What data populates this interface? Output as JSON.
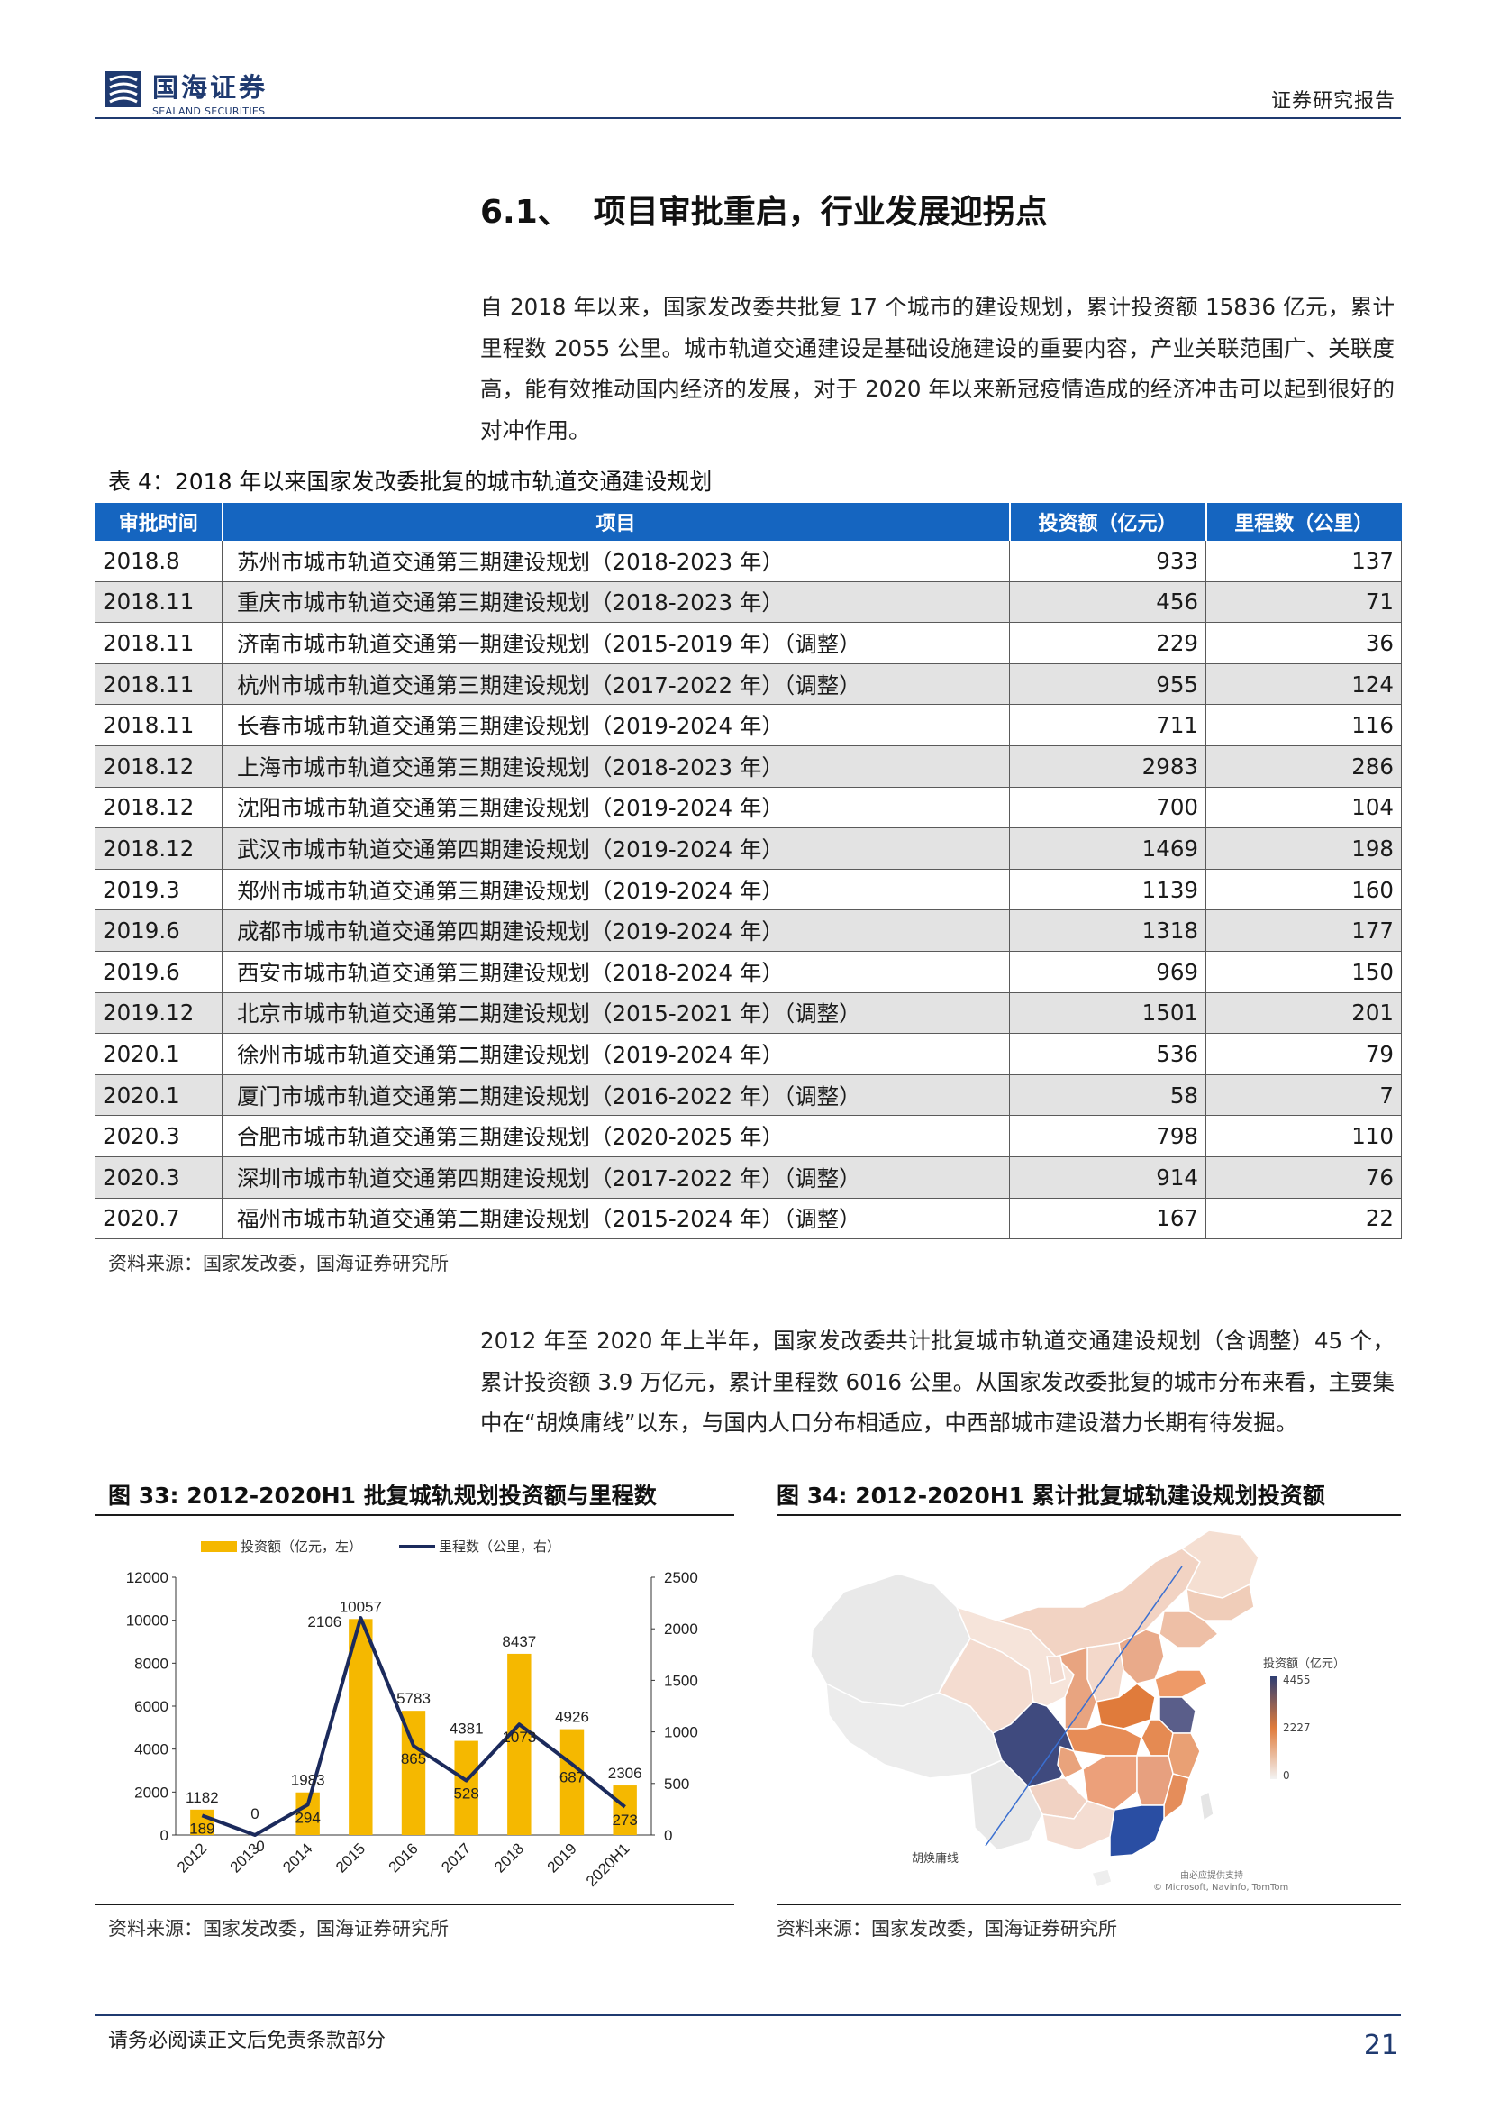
{
  "header": {
    "company_cn": "国海证券",
    "company_en": "SEALAND SECURITIES",
    "report_type": "证券研究报告"
  },
  "section": {
    "number": "6.1、",
    "title": "项目审批重启，行业发展迎拐点"
  },
  "paragraphs": {
    "p1": "自 2018 年以来，国家发改委共批复 17 个城市的建设规划，累计投资额 15836 亿元，累计里程数 2055 公里。城市轨道交通建设是基础设施建设的重要内容，产业关联范围广、关联度高，能有效推动国内经济的发展，对于 2020 年以来新冠疫情造成的经济冲击可以起到很好的对冲作用。",
    "p2": "2012 年至 2020 年上半年，国家发改委共计批复城市轨道交通建设规划（含调整）45 个，累计投资额 3.9 万亿元，累计里程数 6016 公里。从国家发改委批复的城市分布来看，主要集中在“胡焕庸线”以东，与国内人口分布相适应，中西部城市建设潜力长期有待发掘。"
  },
  "table": {
    "caption": "表 4：2018 年以来国家发改委批复的城市轨道交通建设规划",
    "headers": [
      "审批时间",
      "项目",
      "投资额（亿元）",
      "里程数（公里）"
    ],
    "rows": [
      {
        "date": "2018.8",
        "project": "苏州市城市轨道交通第三期建设规划（2018-2023 年）",
        "investment": "933",
        "mileage": "137"
      },
      {
        "date": "2018.11",
        "project": "重庆市城市轨道交通第三期建设规划（2018-2023 年）",
        "investment": "456",
        "mileage": "71"
      },
      {
        "date": "2018.11",
        "project": "济南市城市轨道交通第一期建设规划（2015-2019 年）（调整）",
        "investment": "229",
        "mileage": "36"
      },
      {
        "date": "2018.11",
        "project": "杭州市城市轨道交通第三期建设规划（2017-2022 年）（调整）",
        "investment": "955",
        "mileage": "124"
      },
      {
        "date": "2018.11",
        "project": "长春市城市轨道交通第三期建设规划（2019-2024 年）",
        "investment": "711",
        "mileage": "116"
      },
      {
        "date": "2018.12",
        "project": "上海市城市轨道交通第三期建设规划（2018-2023 年）",
        "investment": "2983",
        "mileage": "286"
      },
      {
        "date": "2018.12",
        "project": "沈阳市城市轨道交通第三期建设规划（2019-2024 年）",
        "investment": "700",
        "mileage": "104"
      },
      {
        "date": "2018.12",
        "project": "武汉市城市轨道交通第四期建设规划（2019-2024 年）",
        "investment": "1469",
        "mileage": "198"
      },
      {
        "date": "2019.3",
        "project": "郑州市城市轨道交通第三期建设规划（2019-2024 年）",
        "investment": "1139",
        "mileage": "160"
      },
      {
        "date": "2019.6",
        "project": "成都市城市轨道交通第四期建设规划（2019-2024 年）",
        "investment": "1318",
        "mileage": "177"
      },
      {
        "date": "2019.6",
        "project": "西安市城市轨道交通第三期建设规划（2018-2024 年）",
        "investment": "969",
        "mileage": "150"
      },
      {
        "date": "2019.12",
        "project": "北京市城市轨道交通第二期建设规划（2015-2021 年）（调整）",
        "investment": "1501",
        "mileage": "201"
      },
      {
        "date": "2020.1",
        "project": "徐州市城市轨道交通第二期建设规划（2019-2024 年）",
        "investment": "536",
        "mileage": "79"
      },
      {
        "date": "2020.1",
        "project": "厦门市城市轨道交通第二期建设规划（2016-2022 年）（调整）",
        "investment": "58",
        "mileage": "7"
      },
      {
        "date": "2020.3",
        "project": "合肥市城市轨道交通第三期建设规划（2020-2025 年）",
        "investment": "798",
        "mileage": "110"
      },
      {
        "date": "2020.3",
        "project": "深圳市城市轨道交通第四期建设规划（2017-2022 年）（调整）",
        "investment": "914",
        "mileage": "76"
      },
      {
        "date": "2020.7",
        "project": "福州市城市轨道交通第二期建设规划（2015-2024 年）（调整）",
        "investment": "167",
        "mileage": "22"
      }
    ],
    "source": "资料来源：国家发改委，国海证券研究所"
  },
  "figures": {
    "fig33_title": "图 33:   2012-2020H1 批复城轨规划投资额与里程数",
    "fig34_title": "图 34:   2012-2020H1 累计批复城轨建设规划投资额",
    "fig33_source": "资料来源：国家发改委，国海证券研究所",
    "fig34_source": "资料来源：国家发改委，国海证券研究所"
  },
  "chart_data": [
    {
      "type": "bar",
      "categories": [
        "2012",
        "2013",
        "2014",
        "2015",
        "2016",
        "2017",
        "2018",
        "2019",
        "2020H1"
      ],
      "series": [
        {
          "name": "投资额（亿元，左）",
          "type": "bar",
          "axis": "left",
          "values": [
            1182,
            0,
            1983,
            10057,
            5783,
            4381,
            8437,
            4926,
            2306
          ],
          "color": "#f5b800"
        },
        {
          "name": "里程数（公里，右）",
          "type": "line",
          "axis": "right",
          "values": [
            189,
            0,
            294,
            2106,
            865,
            528,
            1073,
            687,
            273
          ],
          "color": "#1b2a5c"
        }
      ],
      "ylim_left": [
        0,
        12000
      ],
      "ylim_right": [
        0,
        2500
      ],
      "yticks_left": [
        "0",
        "2000",
        "4000",
        "6000",
        "8000",
        "10000",
        "12000"
      ],
      "yticks_right": [
        "0",
        "500",
        "1000",
        "1500",
        "2000",
        "2500"
      ],
      "bar_labels": [
        "1182",
        "0",
        "1983",
        "10057",
        "5783",
        "4381",
        "8437",
        "4926",
        "2306"
      ],
      "line_labels": [
        "189",
        "0",
        "294",
        "2106",
        "865",
        "528",
        "1073",
        "687",
        "273"
      ],
      "legend_position": "top",
      "grid": false
    },
    {
      "type": "map",
      "legend_title": "投资额（亿元）",
      "scale_labels": [
        "4455",
        "2227",
        "0"
      ],
      "scale_colors": [
        "#2f3e73",
        "#e07b3b",
        "#f3f3f3"
      ],
      "annotation": "胡焕庸线",
      "attribution_cn": "由必应提供支持",
      "attribution_en": "© Microsoft, Navinfo, TomTom"
    }
  ],
  "footer": {
    "disclaimer": "请务必阅读正文后免责条款部分",
    "page_number": "21"
  }
}
